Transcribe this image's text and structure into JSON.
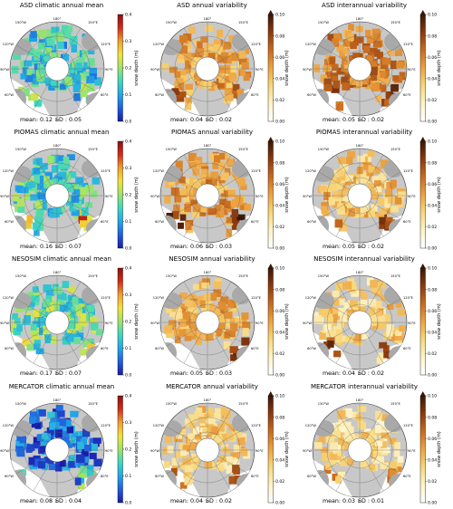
{
  "colorbar": {
    "mean_ticks": [
      "0.4",
      "0.3",
      "0.2",
      "0.1",
      "0.0"
    ],
    "var_ticks": [
      "0.10",
      "0.08",
      "0.06",
      "0.04",
      "0.02",
      "0.00"
    ],
    "label": "snow depth (m)",
    "mean_range": [
      0,
      0.4
    ],
    "var_range": [
      0,
      0.1
    ],
    "mean_colors": [
      "#1a1aa8",
      "#1f5fe0",
      "#22a8e8",
      "#3fd6c0",
      "#9ee36a",
      "#f2e23a",
      "#f2a02a",
      "#d62a1a",
      "#8c0f0f"
    ],
    "var_colors": [
      "#ffffff",
      "#fdf3c8",
      "#f8d77a",
      "#eda341",
      "#c96a1d",
      "#8a3a0e",
      "#3a1705"
    ]
  },
  "map_labels": {
    "top": "180°",
    "bottom": "0°",
    "left_top": "150°W",
    "left_upper": "120°W",
    "left_mid": "90°W",
    "left_low": "60°W",
    "right_top": "150°E",
    "right_upper": "120°E",
    "right_mid": "90°E",
    "right_low": "60°E"
  },
  "chart_data": [
    {
      "type": "heatmap",
      "model": "ASD",
      "title": "ASD climatic annual mean",
      "metric": "mean",
      "mean": "0.12",
      "sd": "0.05",
      "mean_label": "mean: 0.12",
      "sd_label": "SD : 0.05",
      "value_range": [
        0,
        0.4
      ],
      "arctic_level": 0.13,
      "edge_level": 0.2
    },
    {
      "type": "heatmap",
      "model": "ASD",
      "title": "ASD annual variability",
      "metric": "variability",
      "mean": "0.04",
      "sd": "0.02",
      "mean_label": "mean: 0.04",
      "sd_label": "SD : 0.02",
      "value_range": [
        0,
        0.1
      ],
      "arctic_level": 0.05,
      "edge_level": 0.07
    },
    {
      "type": "heatmap",
      "model": "ASD",
      "title": "ASD interannual variability",
      "metric": "variability",
      "mean": "0.05",
      "sd": "0.02",
      "mean_label": "mean: 0.05",
      "sd_label": "SD : 0.02",
      "value_range": [
        0,
        0.1
      ],
      "arctic_level": 0.06,
      "edge_level": 0.08
    },
    {
      "type": "heatmap",
      "model": "PIOMAS",
      "title": "PIOMAS climatic annual mean",
      "metric": "mean",
      "mean": "0.16",
      "sd": "0.07",
      "mean_label": "mean: 0.16",
      "sd_label": "SD : 0.07",
      "value_range": [
        0,
        0.4
      ],
      "arctic_level": 0.15,
      "edge_level": 0.3
    },
    {
      "type": "heatmap",
      "model": "PIOMAS",
      "title": "PIOMAS annual variability",
      "metric": "variability",
      "mean": "0.06",
      "sd": "0.03",
      "mean_label": "mean: 0.06",
      "sd_label": "SD : 0.03",
      "value_range": [
        0,
        0.1
      ],
      "arctic_level": 0.05,
      "edge_level": 0.09
    },
    {
      "type": "heatmap",
      "model": "PIOMAS",
      "title": "PIOMAS interannual variability",
      "metric": "variability",
      "mean": "0.05",
      "sd": "0.02",
      "mean_label": "mean: 0.05",
      "sd_label": "SD : 0.02",
      "value_range": [
        0,
        0.1
      ],
      "arctic_level": 0.04,
      "edge_level": 0.08
    },
    {
      "type": "heatmap",
      "model": "NESOSIM",
      "title": "NESOSIM climatic annual mean",
      "metric": "mean",
      "mean": "0.17",
      "sd": "0.07",
      "mean_label": "mean: 0.17",
      "sd_label": "SD : 0.07",
      "value_range": [
        0,
        0.4
      ],
      "arctic_level": 0.17,
      "edge_level": 0.22
    },
    {
      "type": "heatmap",
      "model": "NESOSIM",
      "title": "NESOSIM annual variability",
      "metric": "variability",
      "mean": "0.05",
      "sd": "0.03",
      "mean_label": "mean: 0.05",
      "sd_label": "SD : 0.03",
      "value_range": [
        0,
        0.1
      ],
      "arctic_level": 0.045,
      "edge_level": 0.09
    },
    {
      "type": "heatmap",
      "model": "NESOSIM",
      "title": "NESOSIM interannual variability",
      "metric": "variability",
      "mean": "0.04",
      "sd": "0.02",
      "mean_label": "mean: 0.04",
      "sd_label": "SD : 0.02",
      "value_range": [
        0,
        0.1
      ],
      "arctic_level": 0.035,
      "edge_level": 0.08
    },
    {
      "type": "heatmap",
      "model": "MERCATOR",
      "title": "MERCATOR climatic annual mean",
      "metric": "mean",
      "mean": "0.08",
      "sd": "0.04",
      "mean_label": "mean: 0.08",
      "sd_label": "SD : 0.04",
      "value_range": [
        0,
        0.4
      ],
      "arctic_level": 0.06,
      "edge_level": 0.15
    },
    {
      "type": "heatmap",
      "model": "MERCATOR",
      "title": "MERCATOR annual variability",
      "metric": "variability",
      "mean": "0.04",
      "sd": "0.02",
      "mean_label": "mean: 0.04",
      "sd_label": "SD : 0.02",
      "value_range": [
        0,
        0.1
      ],
      "arctic_level": 0.035,
      "edge_level": 0.06
    },
    {
      "type": "heatmap",
      "model": "MERCATOR",
      "title": "MERCATOR interannual variability",
      "metric": "variability",
      "mean": "0.03",
      "sd": "0.01",
      "mean_label": "mean: 0.03",
      "sd_label": "SD : 0.01",
      "value_range": [
        0,
        0.1
      ],
      "arctic_level": 0.03,
      "edge_level": 0.05
    }
  ]
}
